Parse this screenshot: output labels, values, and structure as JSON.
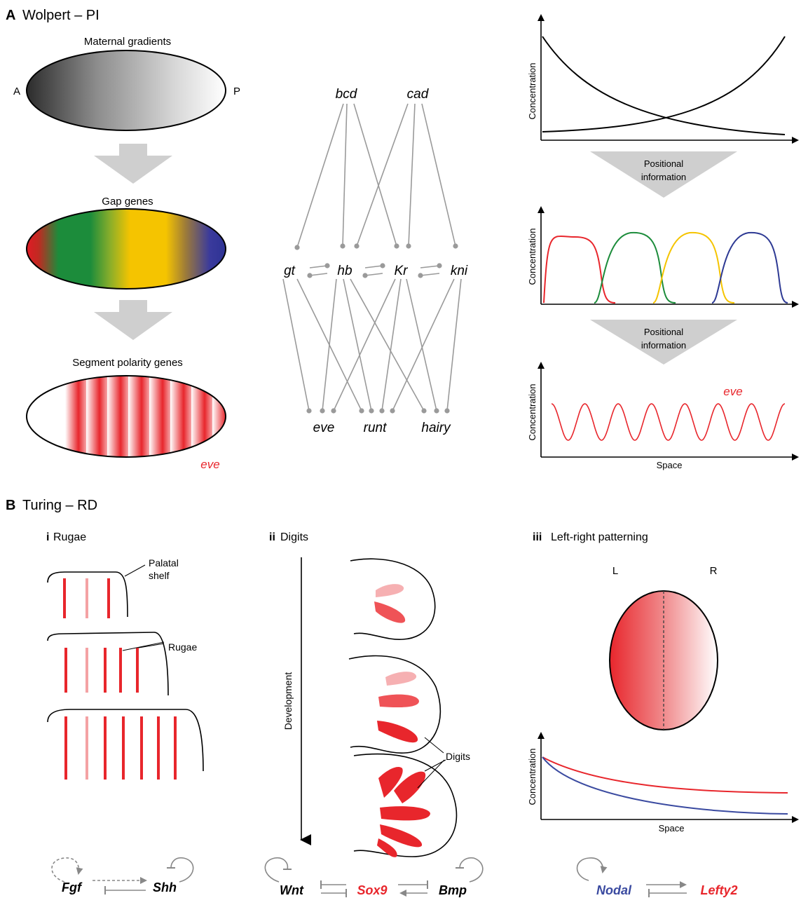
{
  "panel_a": {
    "letter": "A",
    "title": "Wolpert – PI",
    "maternal_label": "Maternal gradients",
    "anterior": "A",
    "posterior": "P",
    "gap_label": "Gap genes",
    "segment_label": "Segment polarity genes",
    "eve_embryo_label": "eve",
    "network": {
      "top": [
        "bcd",
        "cad"
      ],
      "middle": [
        "gt",
        "hb",
        "Kr",
        "kni"
      ],
      "bottom": [
        "eve",
        "runt",
        "hairy"
      ]
    },
    "plot_ylabel": "Concentration",
    "arrow_label_line1": "Positional",
    "arrow_label_line2": "information",
    "eve_plot_label": "eve",
    "plot_xlabel": "Space",
    "colors": {
      "red": "#e8262c",
      "green": "#1c8c3b",
      "yellow": "#f5c400",
      "blue": "#2e3a94",
      "grey": "#9a9a9a"
    }
  },
  "panel_b": {
    "letter": "B",
    "title": "Turing – RD",
    "rugae": {
      "numeral": "i",
      "title": "Rugae",
      "palatal_line1": "Palatal",
      "palatal_line2": "shelf",
      "rugae_label": "Rugae",
      "gene1": "Fgf",
      "gene2": "Shh"
    },
    "digits": {
      "numeral": "ii",
      "title": "Digits",
      "development": "Development",
      "digits_label": "Digits",
      "gene1": "Wnt",
      "gene2": "Sox9",
      "gene3": "Bmp"
    },
    "leftright": {
      "numeral": "iii",
      "title": "Left-right patterning",
      "left": "L",
      "right": "R",
      "ylabel": "Concentration",
      "xlabel": "Space",
      "gene1": "Nodal",
      "gene2": "Lefty2",
      "colors": {
        "nodal": "#3a4aa0",
        "lefty": "#e8262c"
      }
    }
  }
}
